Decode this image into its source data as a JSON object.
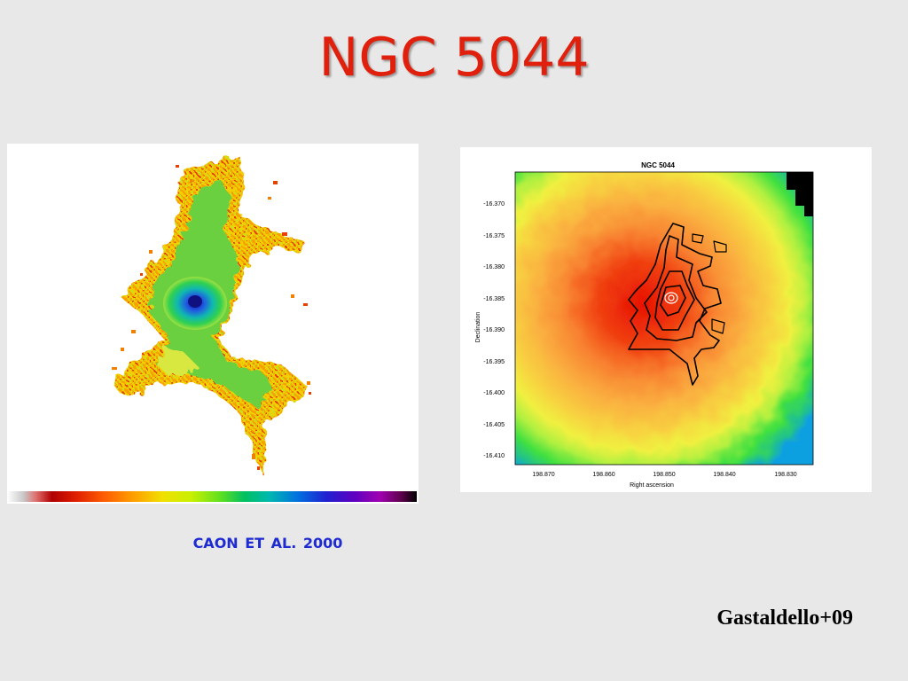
{
  "slide": {
    "title": "NGC 5044",
    "title_color": "#e0200c",
    "caption": "CAON ET AL.  2000",
    "caption_color": "#1e2ad2",
    "credit": "Gastaldello+09"
  },
  "right_plot": {
    "title": "NGC 5044",
    "ylabel": "Declination",
    "xlabel": "Right ascension",
    "y_ticks": [
      "-16.370",
      "-16.375",
      "-16.380",
      "-16.385",
      "-16.390",
      "-16.395",
      "-16.400",
      "-16.405",
      "-16.410"
    ],
    "x_ticks": [
      "198.870",
      "198.860",
      "198.850",
      "198.840",
      "198.830"
    ]
  },
  "colors": {
    "halpha_colorbar": [
      "#ffffff",
      "#c8c8c8",
      "#e07070",
      "#b00000",
      "#e02000",
      "#ff6000",
      "#ffa000",
      "#f0e000",
      "#c8f000",
      "#60e020",
      "#00c060",
      "#00b8b0",
      "#0070e0",
      "#2020d0",
      "#6000c0",
      "#a000b0",
      "#600050",
      "#000000"
    ]
  }
}
